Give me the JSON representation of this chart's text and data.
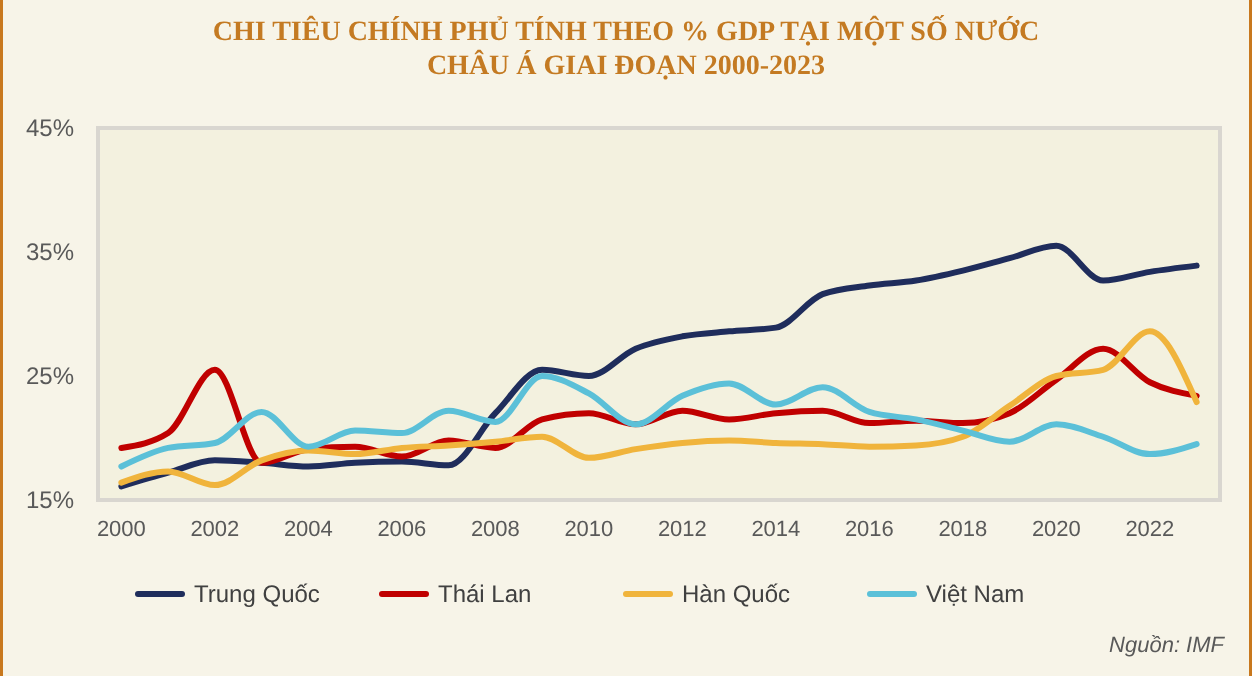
{
  "chart_data": {
    "type": "line",
    "title": "CHI TIÊU CHÍNH PHỦ TÍNH THEO  % GDP TẠI MỘT SỐ NƯỚC\nCHÂU Á GIAI ĐOẠN 2000-2023",
    "x": [
      2000,
      2001,
      2002,
      2003,
      2004,
      2005,
      2006,
      2007,
      2008,
      2009,
      2010,
      2011,
      2012,
      2013,
      2014,
      2015,
      2016,
      2017,
      2018,
      2019,
      2020,
      2021,
      2022,
      2023
    ],
    "series": [
      {
        "name": "Trung  Quốc",
        "color": "#1f2d5c",
        "values": [
          16.1,
          17.2,
          18.2,
          18.0,
          17.7,
          18.0,
          18.1,
          17.8,
          22.0,
          25.5,
          25.0,
          27.2,
          28.2,
          28.6,
          28.9,
          31.6,
          32.3,
          32.7,
          33.5,
          34.5,
          35.5,
          32.7,
          33.4,
          33.9
        ]
      },
      {
        "name": "Thái Lan",
        "color": "#c00000",
        "values": [
          19.2,
          20.4,
          25.5,
          18.0,
          19.1,
          19.3,
          18.5,
          19.8,
          19.2,
          21.5,
          22.0,
          21.1,
          22.2,
          21.5,
          22.0,
          22.2,
          21.2,
          21.4,
          21.2,
          22.0,
          24.7,
          27.2,
          24.5,
          23.4
        ]
      },
      {
        "name": "Hàn Quốc",
        "color": "#f0b43c",
        "values": [
          16.4,
          17.3,
          16.2,
          18.2,
          19.0,
          18.7,
          19.2,
          19.4,
          19.7,
          20.1,
          18.4,
          19.1,
          19.6,
          19.8,
          19.6,
          19.5,
          19.3,
          19.4,
          20.1,
          22.6,
          25.0,
          25.5,
          28.6,
          22.9
        ]
      },
      {
        "name": "Việt Nam",
        "color": "#5bc0d8",
        "values": [
          17.7,
          19.2,
          19.6,
          22.1,
          19.3,
          20.6,
          20.4,
          22.2,
          21.3,
          25.0,
          23.6,
          21.1,
          23.4,
          24.4,
          22.7,
          24.1,
          22.1,
          21.5,
          20.6,
          19.7,
          21.1,
          20.1,
          18.7,
          19.5
        ]
      }
    ],
    "xlim": [
      1999.5,
      2023.5
    ],
    "xticks": [
      2000,
      2002,
      2004,
      2006,
      2008,
      2010,
      2012,
      2014,
      2016,
      2018,
      2020,
      2022
    ],
    "ylim": [
      15,
      45
    ],
    "yticks": [
      {
        "value": 15,
        "label": "15%"
      },
      {
        "value": 25,
        "label": "25%"
      },
      {
        "value": 35,
        "label": "35%"
      },
      {
        "value": 45,
        "label": "45%"
      }
    ],
    "grid": false,
    "legend": "bottom",
    "marker": "none",
    "line_style": "solid",
    "annotations": [
      "Nguồn: IMF"
    ]
  }
}
